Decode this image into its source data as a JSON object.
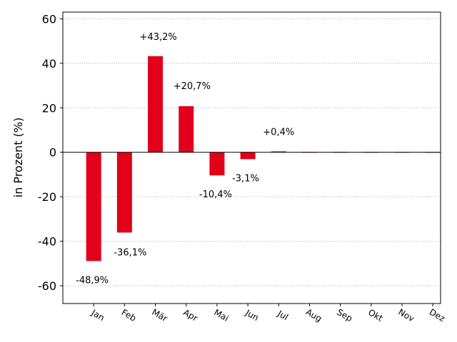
{
  "chart_data": {
    "type": "bar",
    "categories": [
      "Jan",
      "Feb",
      "Mär",
      "Apr",
      "Mai",
      "Jun",
      "Jul",
      "Aug",
      "Sep",
      "Okt",
      "Nov",
      "Dez"
    ],
    "values": [
      -48.9,
      -36.1,
      43.2,
      20.7,
      -10.4,
      -3.1,
      0.4,
      0,
      0,
      0,
      0,
      0
    ],
    "data_labels": [
      "-48,9%",
      "-36,1%",
      "+43,2%",
      "+20,7%",
      "-10,4%",
      "-3,1%",
      "+0,4%",
      "",
      "",
      "",
      "",
      ""
    ],
    "title": "",
    "xlabel": "",
    "ylabel": "in Prozent (%)",
    "ylim": [
      -68,
      63
    ],
    "yticks": [
      60,
      40,
      20,
      0,
      -20,
      -40,
      -60
    ],
    "ytick_labels": [
      "60",
      "40",
      "20",
      "0",
      "-20",
      "-40",
      "-60"
    ],
    "grid": "horizontal dotted",
    "bar_color": "#e2001a"
  }
}
